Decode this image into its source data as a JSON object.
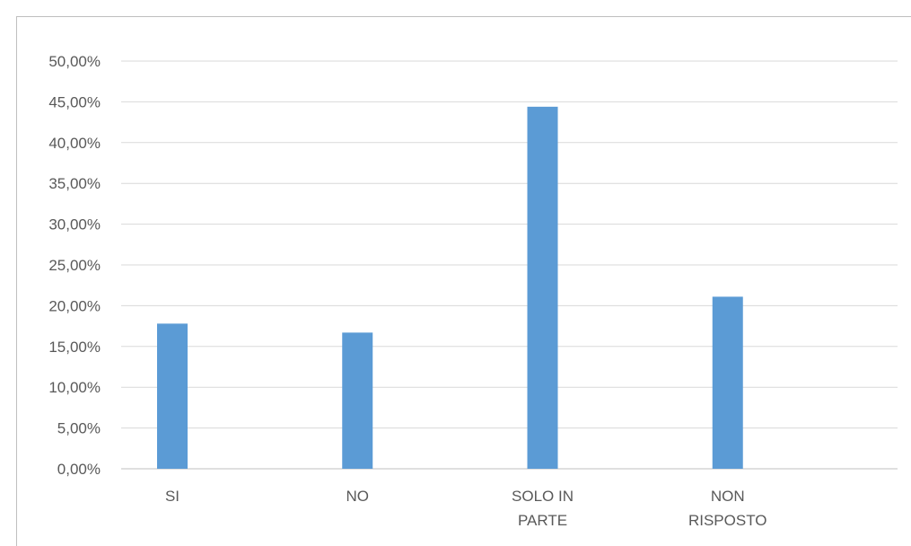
{
  "chart_data": {
    "type": "bar",
    "categories": [
      [
        "SI"
      ],
      [
        "NO"
      ],
      [
        "SOLO IN",
        "PARTE"
      ],
      [
        "NON",
        "RISPOSTO"
      ]
    ],
    "values": [
      17.8,
      16.7,
      44.4,
      21.1
    ],
    "ylim": [
      0,
      50
    ],
    "yticks": [
      "0,00%",
      "5,00%",
      "10,00%",
      "15,00%",
      "20,00%",
      "25,00%",
      "30,00%",
      "35,00%",
      "40,00%",
      "45,00%",
      "50,00%"
    ],
    "grid": true,
    "bar_color": "#5b9bd5",
    "grid_color": "#d9d9d9",
    "axis_color": "#bfbfbf"
  }
}
